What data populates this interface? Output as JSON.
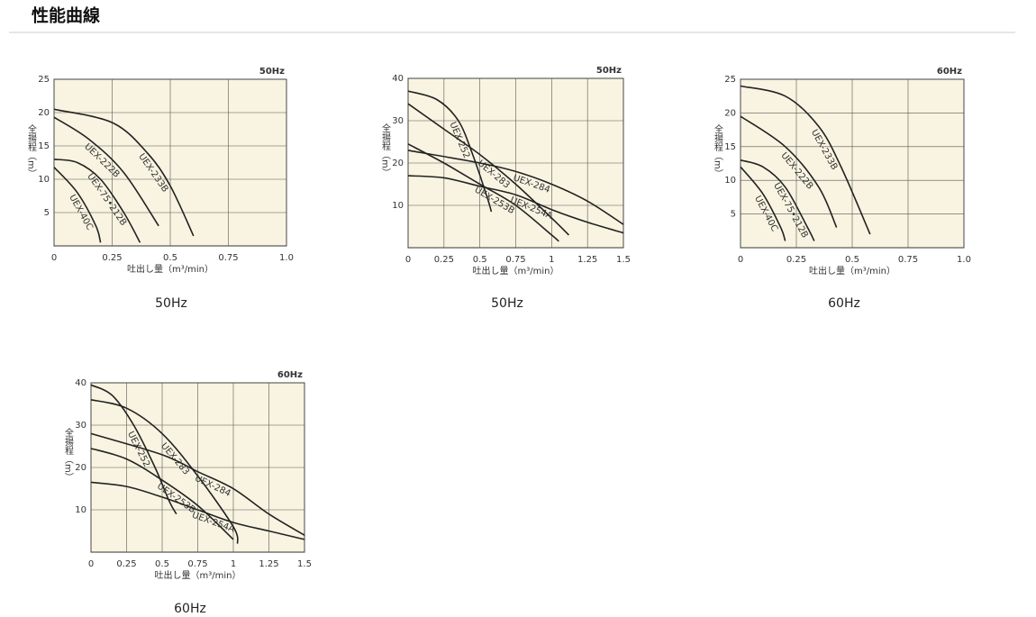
{
  "header": {
    "title": "性能曲線"
  },
  "chart_data": [
    {
      "type": "line",
      "subtitle": "50Hz",
      "caption": "50Hz",
      "x_label": "吐出し量（m³/min）",
      "y_label": "全揚程（m）",
      "color": "#222222",
      "grid": true,
      "xlim": [
        0,
        1
      ],
      "xticks": [
        0,
        0.25,
        0.5,
        0.75,
        {
          "value": 1,
          "label": "1.0"
        }
      ],
      "ylim": [
        0,
        25
      ],
      "yticks": [
        5,
        10,
        15,
        20,
        25
      ],
      "series": [
        {
          "name": "UEX-233B",
          "x": [
            0,
            0.25,
            0.4,
            0.5,
            0.6
          ],
          "values": [
            20.5,
            18.5,
            14,
            9,
            1.5
          ]
        },
        {
          "name": "UEX-222B",
          "x": [
            0,
            0.15,
            0.3,
            0.45
          ],
          "values": [
            19.3,
            16,
            11,
            3
          ]
        },
        {
          "name": "UEX-75•212B",
          "x": [
            0,
            0.1,
            0.2,
            0.3,
            0.37
          ],
          "values": [
            13,
            12.5,
            10,
            5,
            0.5
          ]
        },
        {
          "name": "UEX-40C",
          "x": [
            0,
            0.1,
            0.18,
            0.2
          ],
          "values": [
            11.8,
            8,
            3,
            0.5
          ]
        }
      ]
    },
    {
      "type": "line",
      "subtitle": "50Hz",
      "caption": "50Hz",
      "x_label": "吐出し量（m³/min）",
      "y_label": "全揚程（m）",
      "color": "#222222",
      "grid": true,
      "xlim": [
        0,
        1.5
      ],
      "xticks": [
        0,
        0.25,
        0.5,
        0.75,
        1,
        1.25,
        1.5
      ],
      "ylim": [
        0,
        40
      ],
      "yticks": [
        10,
        20,
        30,
        40
      ],
      "series": [
        {
          "name": "UEX-252",
          "x": [
            0,
            0.2,
            0.35,
            0.45,
            0.55,
            0.58
          ],
          "values": [
            37,
            35,
            30,
            22,
            12,
            8.5
          ]
        },
        {
          "name": "UEX-283",
          "x": [
            0,
            0.25,
            0.5,
            0.75,
            1,
            1.12
          ],
          "values": [
            34,
            28,
            22,
            15,
            7,
            3
          ]
        },
        {
          "name": "UEX-284",
          "x": [
            0,
            0.5,
            0.75,
            1,
            1.25,
            1.5
          ],
          "values": [
            23,
            20,
            18,
            15,
            11,
            5.5
          ]
        },
        {
          "name": "UEX-253B",
          "x": [
            0,
            0.25,
            0.5,
            0.75,
            1,
            1.05
          ],
          "values": [
            24.5,
            20,
            15,
            10,
            3,
            1.5
          ]
        },
        {
          "name": "UEX-254A",
          "x": [
            0,
            0.25,
            0.5,
            0.75,
            1,
            1.25,
            1.5
          ],
          "values": [
            17,
            16.5,
            14.5,
            12.5,
            9,
            6,
            3.5
          ]
        }
      ]
    },
    {
      "type": "line",
      "subtitle": "60Hz",
      "caption": "60Hz",
      "x_label": "吐出し量（m³/min）",
      "y_label": "全揚程（m）",
      "color": "#222222",
      "grid": true,
      "xlim": [
        0,
        1
      ],
      "xticks": [
        0,
        0.25,
        0.5,
        0.75,
        {
          "value": 1,
          "label": "1.0"
        }
      ],
      "ylim": [
        0,
        25
      ],
      "yticks": [
        5,
        10,
        15,
        20,
        25
      ],
      "series": [
        {
          "name": "UEX-233B",
          "x": [
            0,
            0.2,
            0.35,
            0.45,
            0.58
          ],
          "values": [
            24,
            22.5,
            18,
            12,
            2
          ]
        },
        {
          "name": "UEX-222B",
          "x": [
            0,
            0.2,
            0.35,
            0.43
          ],
          "values": [
            19.5,
            15,
            9,
            3
          ]
        },
        {
          "name": "UEX-75•212B",
          "x": [
            0,
            0.1,
            0.2,
            0.3,
            0.33
          ],
          "values": [
            13,
            12,
            9,
            3,
            1
          ]
        },
        {
          "name": "UEX-40C",
          "x": [
            0,
            0.1,
            0.18,
            0.2
          ],
          "values": [
            12,
            8,
            3,
            1
          ]
        }
      ]
    },
    {
      "type": "line",
      "subtitle": "60Hz",
      "caption": "60Hz",
      "x_label": "吐出し量（m³/min）",
      "y_label": "全揚程（m）",
      "color": "#222222",
      "grid": true,
      "xlim": [
        0,
        1.5
      ],
      "xticks": [
        0,
        0.25,
        0.5,
        0.75,
        1,
        1.25,
        1.5
      ],
      "ylim": [
        0,
        40
      ],
      "yticks": [
        10,
        20,
        30,
        40
      ],
      "series": [
        {
          "name": "UEX-252",
          "x": [
            0,
            0.15,
            0.3,
            0.45,
            0.55,
            0.6
          ],
          "values": [
            39.5,
            37,
            30,
            20,
            12,
            9
          ]
        },
        {
          "name": "UEX-283",
          "x": [
            0,
            0.25,
            0.5,
            0.75,
            1,
            1.03
          ],
          "values": [
            36,
            34,
            28,
            18,
            6,
            2
          ]
        },
        {
          "name": "UEX-284",
          "x": [
            0,
            0.5,
            0.75,
            1,
            1.25,
            1.5
          ],
          "values": [
            28,
            23,
            19,
            15,
            9,
            4
          ]
        },
        {
          "name": "UEX-253B",
          "x": [
            0,
            0.25,
            0.5,
            0.75,
            1
          ],
          "values": [
            24.5,
            22,
            17,
            11,
            3
          ]
        },
        {
          "name": "UEX-254A",
          "x": [
            0,
            0.25,
            0.5,
            0.75,
            1,
            1.25,
            1.5
          ],
          "values": [
            16.5,
            15.5,
            13,
            10,
            7,
            5,
            3
          ]
        }
      ]
    }
  ]
}
